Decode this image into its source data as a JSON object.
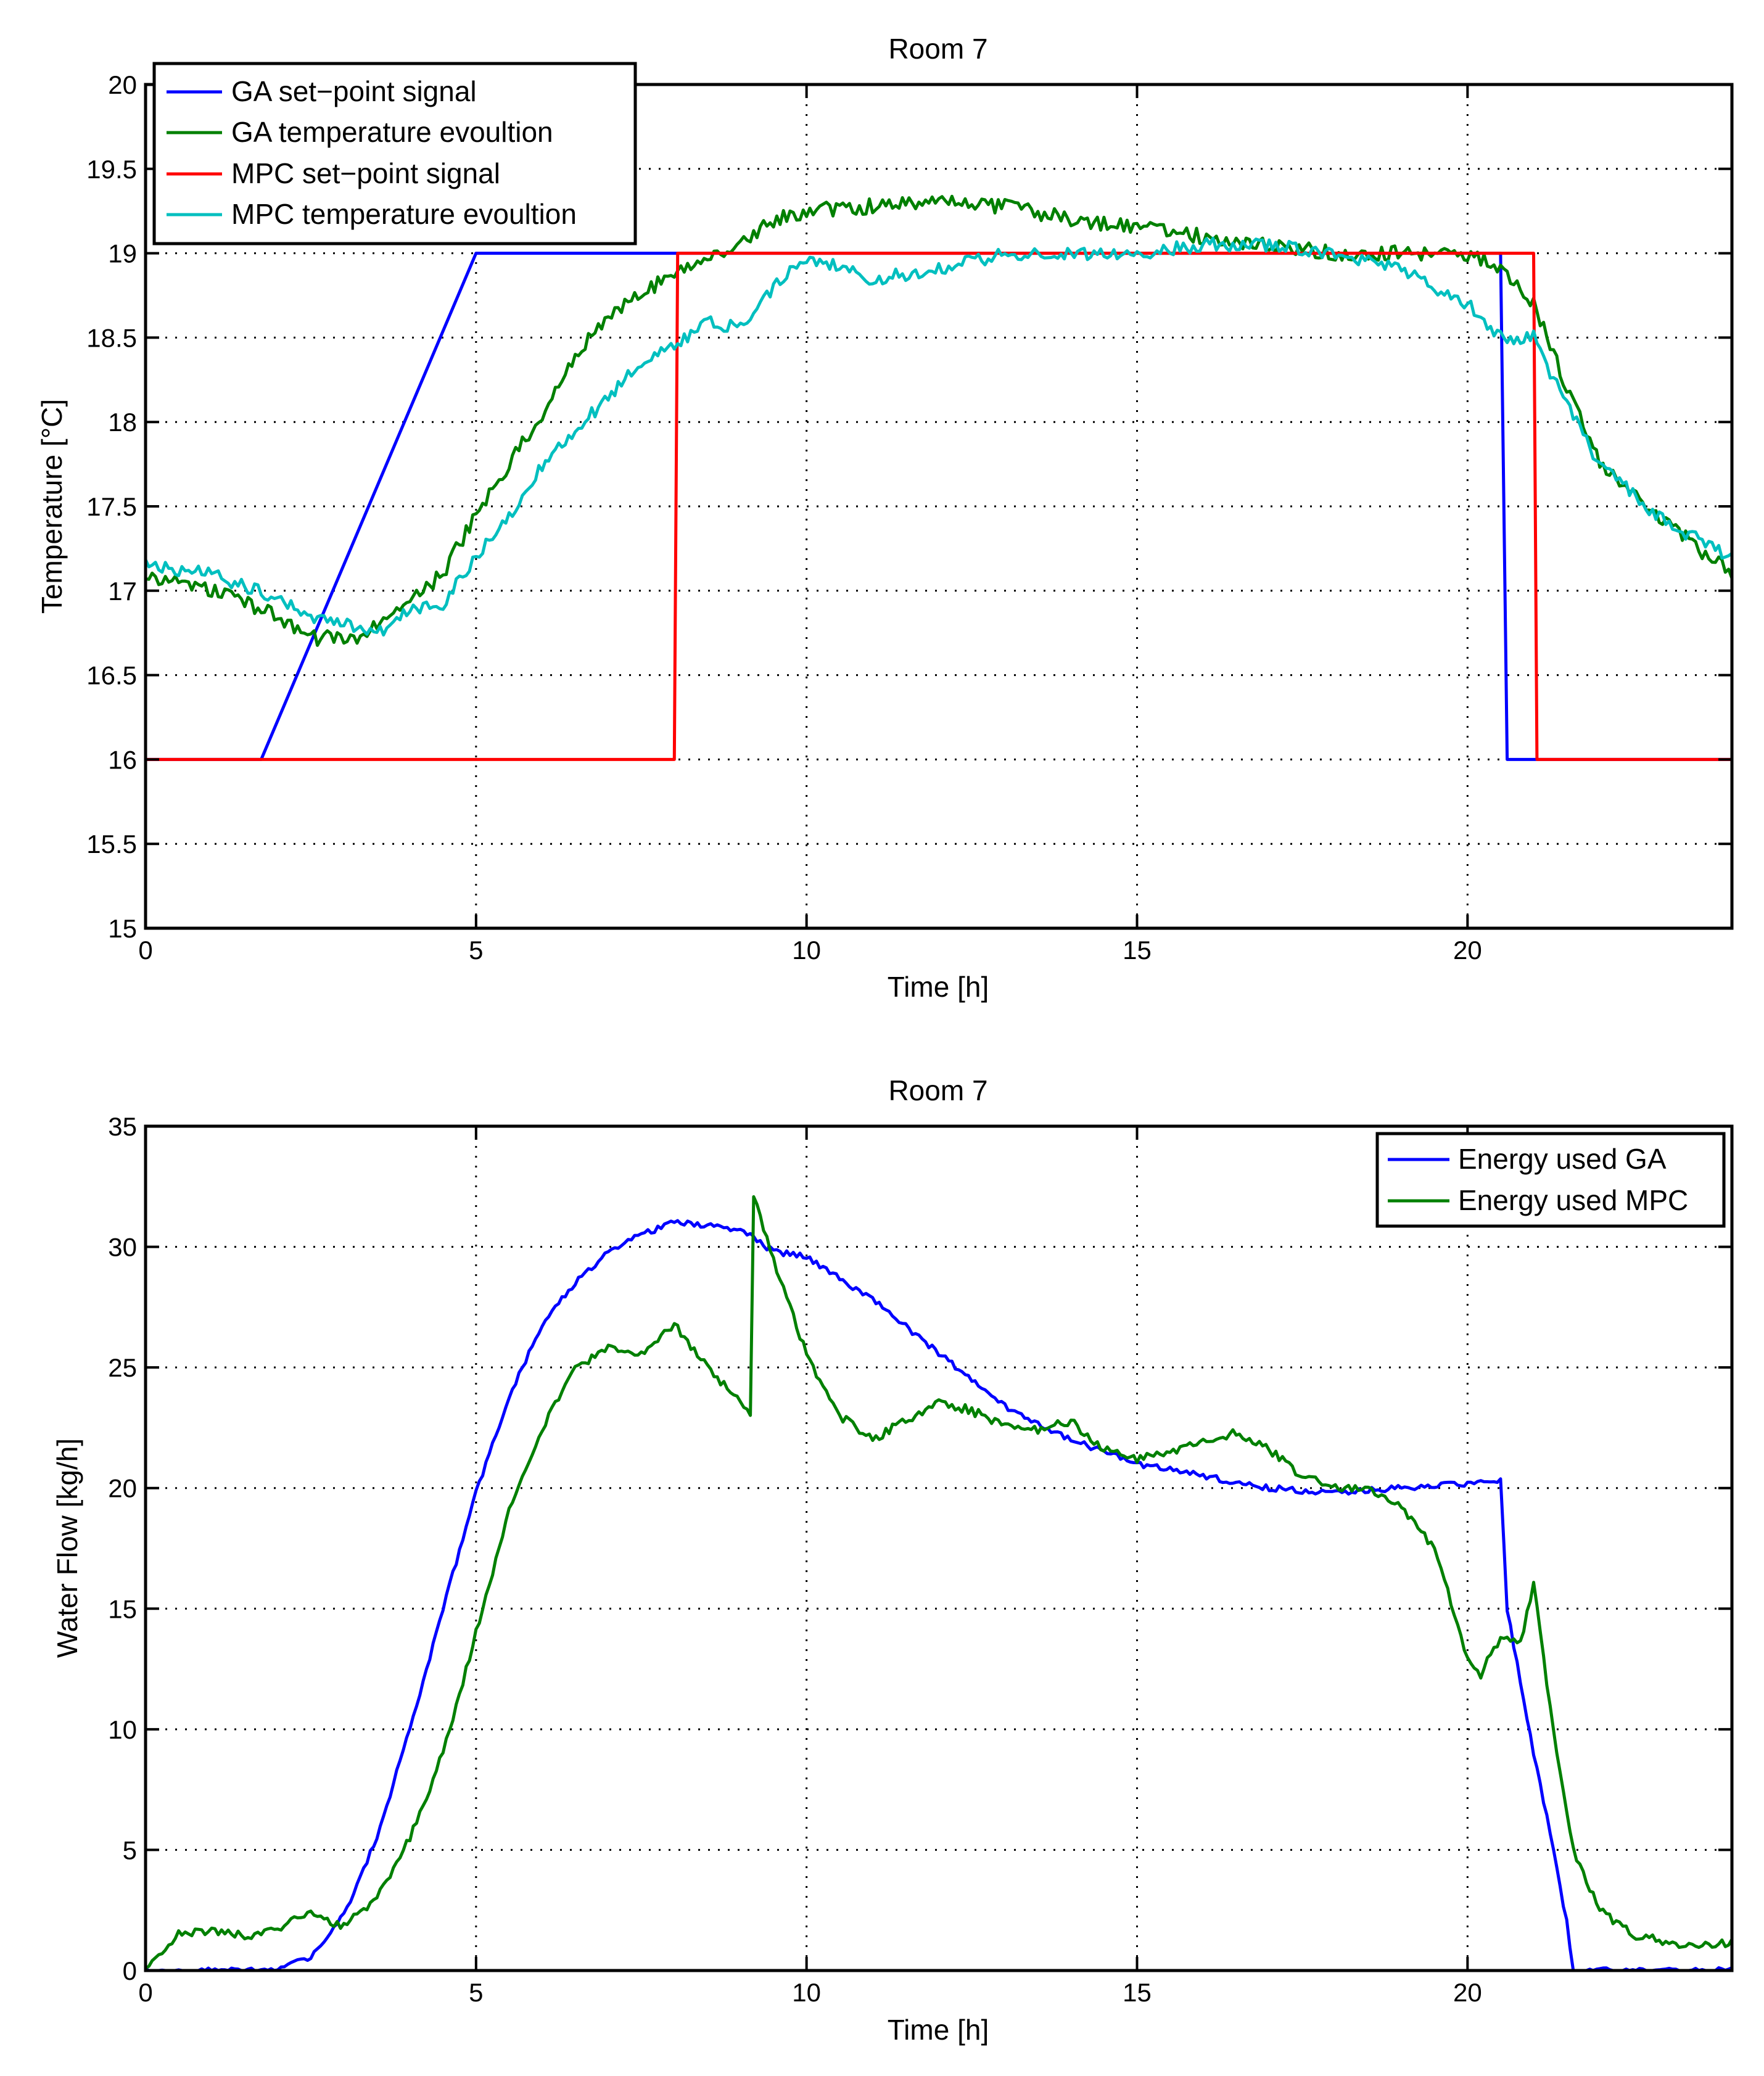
{
  "chart_data": [
    {
      "type": "line",
      "title": "Room 7",
      "xlabel": "Time [h]",
      "ylabel": "Temperature [°C]",
      "xlim": [
        0,
        24
      ],
      "ylim": [
        15,
        20
      ],
      "xticks": [
        0,
        5,
        10,
        15,
        20
      ],
      "yticks": [
        15,
        15.5,
        16,
        16.5,
        17,
        17.5,
        18,
        18.5,
        19,
        19.5,
        20
      ],
      "xtick_labels": [
        "0",
        "5",
        "10",
        "15",
        "20"
      ],
      "ytick_labels": [
        "15",
        "15.5",
        "16",
        "16.5",
        "17",
        "17.5",
        "18",
        "18.5",
        "19",
        "19.5",
        "20"
      ],
      "grid": true,
      "legend_position": "top-left",
      "series": [
        {
          "name": "GA set−point signal",
          "color": "#0000ff",
          "x": [
            0,
            1.75,
            5.0,
            20.5,
            20.6,
            24.0
          ],
          "y": [
            16,
            16,
            19,
            19,
            16,
            16
          ]
        },
        {
          "name": "GA temperature evoultion",
          "color": "#008000",
          "noise": 0.045,
          "x": [
            0,
            1,
            2,
            2.5,
            3.2,
            4,
            4.5,
            5,
            5.5,
            6,
            6.5,
            7,
            7.5,
            8,
            8.5,
            9,
            9.5,
            10,
            11,
            12,
            13,
            14,
            15,
            16,
            17,
            18,
            19,
            20,
            20.5,
            21,
            21.5,
            22,
            23,
            24
          ],
          "y": [
            17.1,
            17.0,
            16.85,
            16.72,
            16.72,
            16.95,
            17.1,
            17.45,
            17.75,
            18.05,
            18.4,
            18.62,
            18.75,
            18.88,
            19.0,
            19.05,
            19.2,
            19.25,
            19.28,
            19.3,
            19.28,
            19.2,
            19.15,
            19.1,
            19.05,
            19.0,
            19.0,
            19.0,
            18.92,
            18.7,
            18.2,
            17.75,
            17.4,
            17.1
          ]
        },
        {
          "name": "MPC set−point signal",
          "color": "#ff0000",
          "x": [
            0,
            8.0,
            8.05,
            21.0,
            21.05,
            24.0
          ],
          "y": [
            16,
            16,
            19,
            19,
            16,
            16
          ]
        },
        {
          "name": "MPC temperature evoultion",
          "color": "#00bfbf",
          "noise": 0.04,
          "x": [
            0,
            1,
            2,
            2.5,
            3,
            3.5,
            4,
            4.5,
            5,
            5.5,
            6,
            6.5,
            7,
            7.5,
            8,
            8.5,
            9,
            9.5,
            10,
            11,
            12,
            13,
            14,
            15,
            16,
            17,
            18,
            19,
            20,
            20.5,
            21,
            21.5,
            22,
            23,
            24
          ],
          "y": [
            17.15,
            17.1,
            16.95,
            16.85,
            16.8,
            16.75,
            16.88,
            16.92,
            17.2,
            17.45,
            17.75,
            17.95,
            18.15,
            18.35,
            18.45,
            18.6,
            18.55,
            18.8,
            18.98,
            18.85,
            18.9,
            19.0,
            19.0,
            19.0,
            19.05,
            19.05,
            19.0,
            18.9,
            18.7,
            18.5,
            18.5,
            18.1,
            17.75,
            17.4,
            17.2
          ]
        }
      ]
    },
    {
      "type": "line",
      "title": "Room 7",
      "xlabel": "Time [h]",
      "ylabel": "Water Flow [kg/h]",
      "xlim": [
        0,
        24
      ],
      "ylim": [
        0,
        35
      ],
      "xticks": [
        0,
        5,
        10,
        15,
        20
      ],
      "yticks": [
        0,
        5,
        10,
        15,
        20,
        25,
        30,
        35
      ],
      "xtick_labels": [
        "0",
        "5",
        "10",
        "15",
        "20"
      ],
      "ytick_labels": [
        "0",
        "5",
        "10",
        "15",
        "20",
        "25",
        "30",
        "35"
      ],
      "grid": true,
      "legend_position": "top-right",
      "series": [
        {
          "name": "Energy used GA",
          "color": "#0000ff",
          "noise": 0.12,
          "x": [
            0,
            2.0,
            2.5,
            3.0,
            3.5,
            4.0,
            4.5,
            5.0,
            5.5,
            6.0,
            6.5,
            7.0,
            7.5,
            8.0,
            8.5,
            9.0,
            9.5,
            10.0,
            11.0,
            12.0,
            13.0,
            14.0,
            15.0,
            16.0,
            17.0,
            18.0,
            19.0,
            20.0,
            20.5,
            20.6,
            21.0,
            21.3,
            21.5,
            21.6,
            24.0
          ],
          "y": [
            0,
            0,
            0.6,
            2.3,
            5.5,
            10.0,
            15.0,
            19.8,
            23.8,
            26.8,
            28.5,
            29.8,
            30.5,
            31.0,
            30.9,
            30.7,
            29.8,
            29.6,
            27.8,
            25.6,
            23.4,
            22.0,
            21.0,
            20.5,
            20.0,
            19.8,
            20.0,
            20.2,
            20.3,
            15.0,
            9.0,
            5.0,
            2.0,
            0,
            0
          ]
        },
        {
          "name": "Energy used MPC",
          "color": "#008000",
          "noise": 0.18,
          "x": [
            0,
            0.5,
            1.0,
            1.5,
            2.0,
            2.5,
            3.0,
            3.5,
            4.0,
            4.5,
            5.0,
            5.5,
            6.0,
            6.5,
            7.0,
            7.5,
            8.0,
            8.5,
            9.0,
            9.15,
            9.2,
            9.5,
            10.0,
            10.5,
            11.0,
            11.5,
            12.0,
            12.5,
            13.0,
            13.5,
            14.0,
            14.5,
            15.0,
            15.5,
            16.0,
            16.5,
            17.0,
            17.5,
            18.0,
            18.5,
            19.0,
            19.5,
            20.0,
            20.2,
            20.5,
            20.8,
            21.0,
            21.3,
            21.6,
            22.0,
            22.5,
            23.0,
            23.5,
            24.0
          ],
          "y": [
            0.2,
            1.5,
            1.7,
            1.4,
            1.8,
            2.3,
            1.8,
            3.0,
            5.5,
            9.0,
            14.0,
            19.0,
            22.5,
            25.0,
            25.8,
            25.6,
            26.8,
            25.0,
            23.5,
            23.0,
            32.0,
            29.5,
            25.5,
            23.0,
            22.0,
            22.8,
            23.6,
            23.2,
            22.6,
            22.4,
            22.8,
            21.6,
            21.2,
            21.5,
            22.0,
            22.3,
            21.6,
            20.5,
            20.0,
            20.0,
            19.2,
            17.5,
            13.0,
            12.3,
            13.8,
            13.5,
            16.0,
            10.0,
            5.0,
            2.5,
            1.5,
            1.2,
            1.0,
            1.2
          ]
        }
      ]
    }
  ]
}
